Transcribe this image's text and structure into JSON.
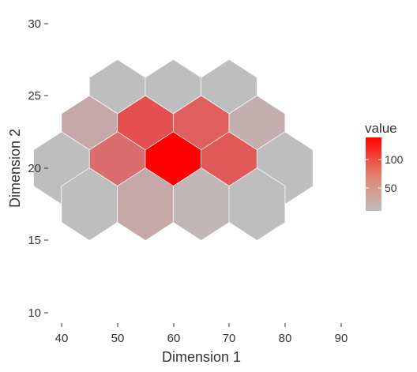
{
  "chart_data": {
    "type": "heatmap",
    "title": "",
    "xlabel": "Dimension 1",
    "ylabel": "Dimension 2",
    "xlim": [
      35,
      92
    ],
    "ylim": [
      9.5,
      31.5
    ],
    "x_ticks": [
      "40",
      "50",
      "60",
      "70",
      "80",
      "90"
    ],
    "y_ticks": [
      "10",
      "15",
      "20",
      "25",
      "30"
    ],
    "grid": false,
    "legend": {
      "title": "value",
      "position": "right",
      "breaks": [
        "50",
        "100"
      ],
      "range": [
        10,
        140
      ],
      "low_color": "#BEBEBE",
      "high_color": "#FF0000"
    },
    "cells": [
      {
        "x": 50,
        "y": 25,
        "value": 10
      },
      {
        "x": 60,
        "y": 25,
        "value": 10
      },
      {
        "x": 70,
        "y": 25,
        "value": 10
      },
      {
        "x": 45,
        "y": 22.5,
        "value": 25
      },
      {
        "x": 55,
        "y": 22.5,
        "value": 85
      },
      {
        "x": 65,
        "y": 22.5,
        "value": 75
      },
      {
        "x": 75,
        "y": 22.5,
        "value": 20
      },
      {
        "x": 40,
        "y": 20,
        "value": 10
      },
      {
        "x": 50,
        "y": 20,
        "value": 65
      },
      {
        "x": 60,
        "y": 20,
        "value": 140
      },
      {
        "x": 70,
        "y": 20,
        "value": 80
      },
      {
        "x": 80,
        "y": 20,
        "value": 10
      },
      {
        "x": 45,
        "y": 17.5,
        "value": 10
      },
      {
        "x": 55,
        "y": 17.5,
        "value": 25
      },
      {
        "x": 65,
        "y": 17.5,
        "value": 15
      },
      {
        "x": 75,
        "y": 17.5,
        "value": 10
      }
    ]
  }
}
